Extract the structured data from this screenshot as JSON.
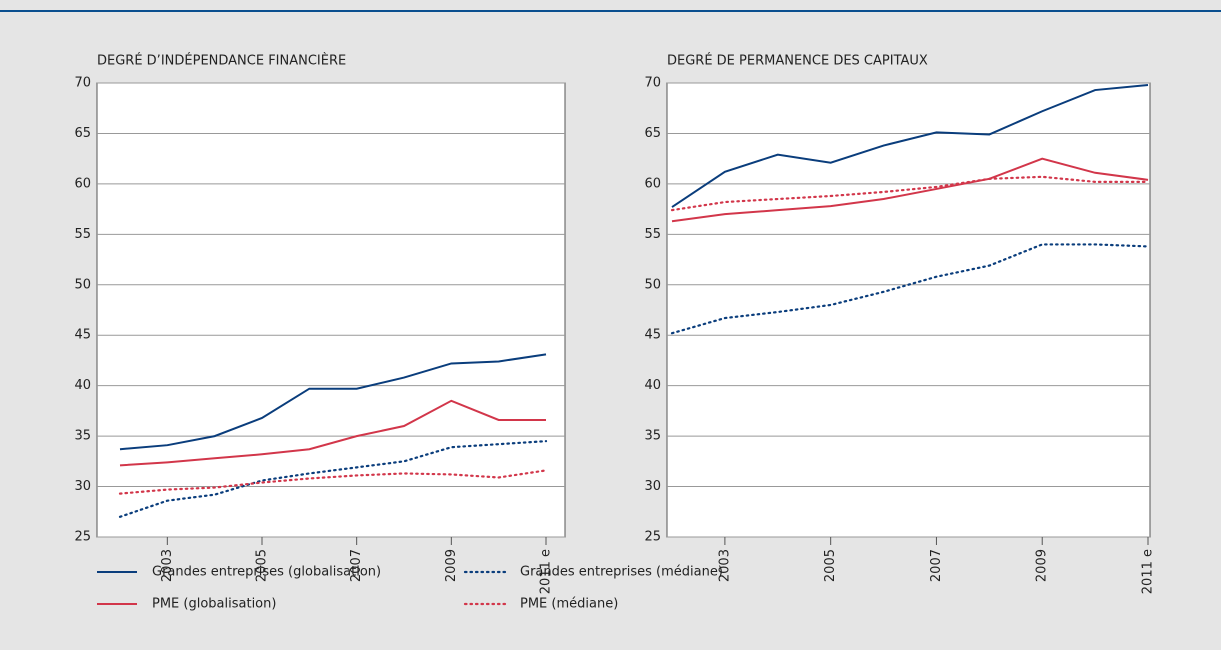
{
  "chart_data": [
    {
      "type": "line",
      "title": "DEGRÉ D’INDÉPENDANCE FINANCIÈRE",
      "categories": [
        null,
        "2003",
        null,
        "2005",
        null,
        "2007",
        null,
        "2009",
        null,
        "2011 e"
      ],
      "ylim": [
        25,
        70
      ],
      "yticks": [
        25,
        30,
        35,
        40,
        45,
        50,
        55,
        60,
        65,
        70
      ],
      "grid": true,
      "series": [
        {
          "name": "Grandes entreprises (globalisation)",
          "color": "#0a3d7c",
          "style": "solid",
          "values": [
            33.7,
            34.1,
            35.0,
            36.8,
            39.7,
            39.7,
            40.8,
            42.2,
            42.4,
            43.1
          ]
        },
        {
          "name": "PME (globalisation)",
          "color": "#d2364a",
          "style": "solid",
          "values": [
            32.1,
            32.4,
            32.8,
            33.2,
            33.7,
            35.0,
            36.0,
            38.5,
            36.6,
            36.6
          ]
        },
        {
          "name": "Grandes entreprises (médiane)",
          "color": "#0a3d7c",
          "style": "dotted",
          "values": [
            27.0,
            28.6,
            29.2,
            30.6,
            31.3,
            31.9,
            32.5,
            33.9,
            34.2,
            34.5
          ]
        },
        {
          "name": "PME (médiane)",
          "color": "#d2364a",
          "style": "dotted",
          "values": [
            29.3,
            29.7,
            29.9,
            30.4,
            30.8,
            31.1,
            31.3,
            31.2,
            30.9,
            31.6
          ]
        }
      ]
    },
    {
      "type": "line",
      "title": "DEGRÉ DE PERMANENCE DES CAPITAUX",
      "categories": [
        null,
        "2003",
        null,
        "2005",
        null,
        "2007",
        null,
        "2009",
        null,
        "2011 e"
      ],
      "ylim": [
        25,
        70
      ],
      "yticks": [
        25,
        30,
        35,
        40,
        45,
        50,
        55,
        60,
        65,
        70
      ],
      "grid": true,
      "series": [
        {
          "name": "Grandes entreprises (globalisation)",
          "color": "#0a3d7c",
          "style": "solid",
          "values": [
            57.7,
            61.2,
            62.9,
            62.1,
            63.8,
            65.1,
            64.9,
            67.2,
            69.3,
            69.8
          ]
        },
        {
          "name": "PME (globalisation)",
          "color": "#d2364a",
          "style": "solid",
          "values": [
            56.3,
            57.0,
            57.4,
            57.8,
            58.5,
            59.5,
            60.5,
            62.5,
            61.1,
            60.4
          ]
        },
        {
          "name": "Grandes entreprises (médiane)",
          "color": "#0a3d7c",
          "style": "dotted",
          "values": [
            45.2,
            46.7,
            47.3,
            48.0,
            49.3,
            50.8,
            51.9,
            54.0,
            54.0,
            53.8
          ]
        },
        {
          "name": "PME (médiane)",
          "color": "#d2364a",
          "style": "dotted",
          "values": [
            57.4,
            58.2,
            58.5,
            58.8,
            59.2,
            59.7,
            60.5,
            60.7,
            60.2,
            60.2
          ]
        }
      ]
    }
  ]
}
